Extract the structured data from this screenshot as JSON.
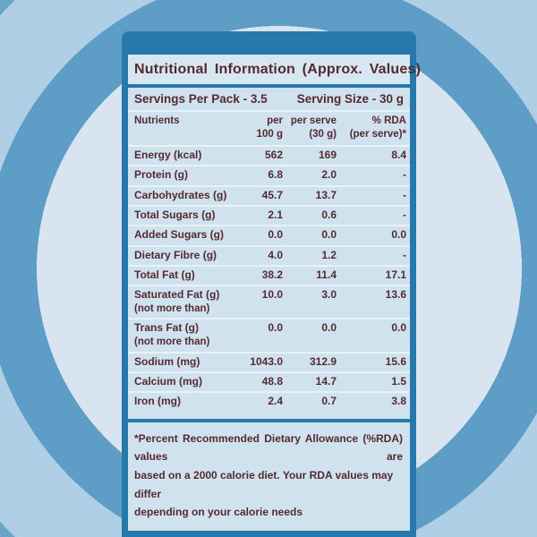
{
  "background": {
    "center_color": "#d8e5f0",
    "ring_dark_color": "#5e9dc6",
    "ring_light_color": "#aecfe6",
    "outer_color": "#69a5cb"
  },
  "panel": {
    "frame_color": "#2679aa",
    "content_bg_color": "#cfe2ee",
    "text_color": "#542a31",
    "title": "Nutritional Information (Approx. Values)",
    "servings_per_pack": "Servings Per Pack - 3.5",
    "serving_size": "Serving Size - 30 g"
  },
  "table": {
    "columns": {
      "nutrients": "Nutrients",
      "per_100g": [
        "per",
        "100 g"
      ],
      "per_serve": [
        "per serve",
        "(30 g)"
      ],
      "rda": [
        "% RDA",
        "(per serve)*"
      ]
    },
    "rows": [
      {
        "label": "Energy (kcal)",
        "per_100g": "562",
        "per_serve": "169",
        "rda": "8.4"
      },
      {
        "label": "Protein (g)",
        "per_100g": "6.8",
        "per_serve": "2.0",
        "rda": "-"
      },
      {
        "label": "Carbohydrates (g)",
        "per_100g": "45.7",
        "per_serve": "13.7",
        "rda": "-"
      },
      {
        "label": "Total Sugars (g)",
        "per_100g": "2.1",
        "per_serve": "0.6",
        "rda": "-"
      },
      {
        "label": "Added Sugars (g)",
        "per_100g": "0.0",
        "per_serve": "0.0",
        "rda": "0.0"
      },
      {
        "label": "Dietary Fibre (g)",
        "per_100g": "4.0",
        "per_serve": "1.2",
        "rda": "-"
      },
      {
        "label": "Total Fat (g)",
        "per_100g": "38.2",
        "per_serve": "11.4",
        "rda": "17.1"
      },
      {
        "label": "Saturated Fat (g)",
        "sublabel": "(not more than)",
        "per_100g": "10.0",
        "per_serve": "3.0",
        "rda": "13.6"
      },
      {
        "label": "Trans Fat (g)",
        "sublabel": "(not more than)",
        "per_100g": "0.0",
        "per_serve": "0.0",
        "rda": "0.0"
      },
      {
        "label": "Sodium (mg)",
        "per_100g": "1043.0",
        "per_serve": "312.9",
        "rda": "15.6"
      },
      {
        "label": "Calcium (mg)",
        "per_100g": "48.8",
        "per_serve": "14.7",
        "rda": "1.5"
      },
      {
        "label": "Iron (mg)",
        "per_100g": "2.4",
        "per_serve": "0.7",
        "rda": "3.8"
      }
    ]
  },
  "footnote": {
    "lines": [
      "*Percent Recommended Dietary Allowance (%RDA) values are",
      "based on a 2000 calorie diet. Your RDA values may differ",
      "depending on your calorie needs"
    ]
  }
}
